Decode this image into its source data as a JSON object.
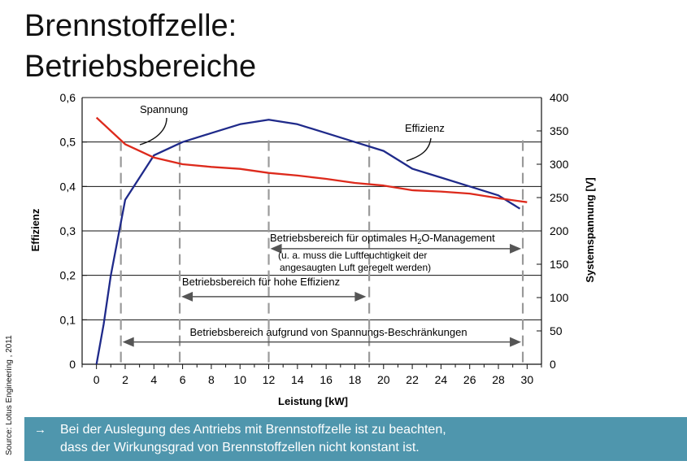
{
  "slide": {
    "title_line1": "Brennstoffzelle:",
    "title_line2": "Betriebsbereiche",
    "source": "Source: Lotus Engineering , 2011",
    "note_arrow": "→",
    "note_line1": "Bei der Auslegung des Antriebs mit Brennstoffzelle ist zu beachten,",
    "note_line2": "dass der Wirkungsgrad von Brennstoffzellen nicht konstant ist."
  },
  "chart_data": {
    "type": "line",
    "xlabel": "Leistung [kW]",
    "ylabel": "Effizienz",
    "y2label": "Systemspannung [V]",
    "xlim": [
      -1,
      31
    ],
    "ylim": [
      0,
      0.6
    ],
    "y2lim": [
      0,
      400
    ],
    "x_ticks": [
      "0",
      "2",
      "4",
      "6",
      "8",
      "10",
      "12",
      "14",
      "16",
      "18",
      "20",
      "22",
      "24",
      "26",
      "28",
      "30"
    ],
    "y_ticks": [
      "0",
      "0,1",
      "0,2",
      "0,3",
      "0,4",
      "0,5",
      "0,6"
    ],
    "y2_ticks": [
      "0",
      "50",
      "100",
      "150",
      "200",
      "250",
      "300",
      "350",
      "400"
    ],
    "grid": "horizontal",
    "series": [
      {
        "name": "Effizienz",
        "axis": "left",
        "color": "#1f2a8a",
        "x": [
          0,
          0.5,
          1,
          2,
          4,
          6,
          8,
          10,
          12,
          14,
          16,
          18,
          20,
          22,
          24,
          26,
          28,
          29.5
        ],
        "y": [
          0,
          0.09,
          0.2,
          0.37,
          0.47,
          0.5,
          0.52,
          0.54,
          0.55,
          0.54,
          0.52,
          0.5,
          0.48,
          0.44,
          0.42,
          0.4,
          0.38,
          0.35
        ]
      },
      {
        "name": "Spannung",
        "axis": "right",
        "color": "#dd2a1c",
        "x": [
          0,
          1,
          2,
          3,
          4,
          6,
          8,
          10,
          12,
          14,
          16,
          18,
          20,
          22,
          24,
          26,
          28,
          30
        ],
        "y": [
          370,
          350,
          330,
          320,
          310,
          300,
          296,
          293,
          287,
          283,
          278,
          272,
          268,
          261,
          259,
          256,
          249,
          243
        ]
      }
    ],
    "operating_ranges": [
      {
        "label": "Betriebsbereich aufgrund von Spannungs-Beschränkungen",
        "from": 1.7,
        "to": 29.7,
        "level": 0.05
      },
      {
        "label": "Betriebsbereich für hohe Effizienz",
        "from": 5.8,
        "to": 18.9,
        "level": 0.152
      },
      {
        "label_pre": "Betriebsbereich für optimales H",
        "label_sub": "2",
        "label_post": "O-Management",
        "from": 12,
        "to": 29.7,
        "level": 0.26,
        "note_line1": "(u. a. muss die Luftfeuchtigkeit der",
        "note_line2": "angesaugten Luft geregelt werden)"
      }
    ],
    "dashed_markers_x": [
      1.7,
      5.8,
      12,
      19,
      29.7
    ]
  }
}
